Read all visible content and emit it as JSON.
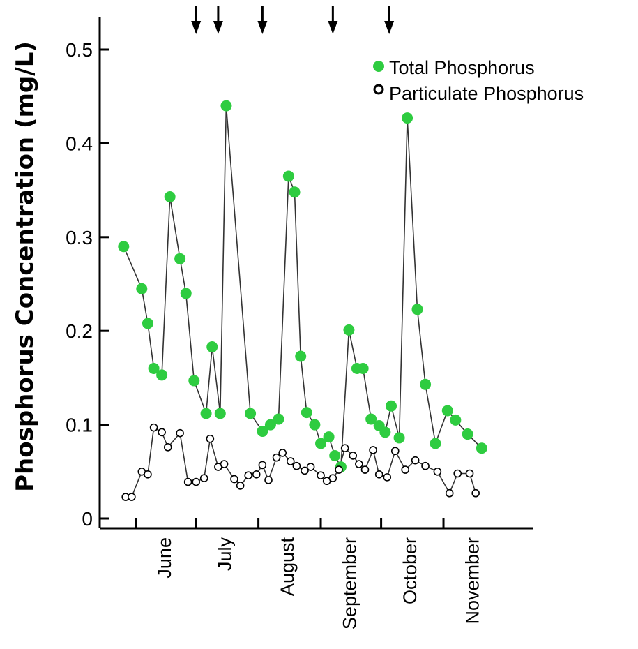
{
  "chart_data": {
    "type": "line",
    "title": "",
    "xlabel": "",
    "ylabel": "Phosphorus Concentration (mg/L)",
    "ylim": [
      0,
      0.5
    ],
    "yticks": [
      "0",
      "0.1",
      "0.2",
      "0.3",
      "0.4",
      "0.5"
    ],
    "x_unit": "day of year",
    "xlim": [
      140,
      340
    ],
    "month_labels": [
      {
        "label": "June",
        "x": 166
      },
      {
        "label": "July",
        "x": 196
      },
      {
        "label": "August",
        "x": 227
      },
      {
        "label": "September",
        "x": 258
      },
      {
        "label": "October",
        "x": 288
      },
      {
        "label": "November",
        "x": 319
      }
    ],
    "month_boundaries": [
      152,
      182,
      213,
      244,
      274,
      305
    ],
    "arrows_x": [
      182,
      193,
      215,
      250,
      278
    ],
    "legend": {
      "placement": "top-right"
    },
    "series": [
      {
        "name": "Total Phosphorus",
        "color": "#2ecc40",
        "marker": "filled-circle",
        "x": [
          146,
          155,
          158,
          161,
          165,
          169,
          174,
          177,
          181,
          187,
          190,
          194,
          197,
          209,
          215,
          219,
          223,
          228,
          231,
          234,
          237,
          241,
          244,
          248,
          251,
          254,
          258,
          262,
          265,
          269,
          273,
          276,
          279,
          283,
          287,
          292,
          296,
          301,
          307,
          311,
          317,
          324
        ],
        "y": [
          0.29,
          0.245,
          0.208,
          0.16,
          0.153,
          0.343,
          0.277,
          0.24,
          0.147,
          0.112,
          0.183,
          0.112,
          0.44,
          0.112,
          0.093,
          0.1,
          0.106,
          0.365,
          0.348,
          0.173,
          0.113,
          0.1,
          0.08,
          0.087,
          0.067,
          0.055,
          0.201,
          0.16,
          0.16,
          0.106,
          0.099,
          0.092,
          0.12,
          0.086,
          0.427,
          0.223,
          0.143,
          0.08,
          0.115,
          0.105,
          0.09,
          0.075
        ]
      },
      {
        "name": "Particulate Phosphorus",
        "color": "#ffffff",
        "marker": "open-circle",
        "x": [
          147,
          150,
          155,
          158,
          161,
          165,
          168,
          174,
          178,
          182,
          186,
          189,
          193,
          196,
          201,
          204,
          208,
          212,
          215,
          218,
          222,
          225,
          229,
          232,
          236,
          239,
          244,
          247,
          250,
          253,
          256,
          260,
          263,
          266,
          270,
          273,
          277,
          281,
          286,
          291,
          296,
          302,
          308,
          312,
          318,
          321
        ],
        "y": [
          0.023,
          0.023,
          0.05,
          0.047,
          0.097,
          0.092,
          0.076,
          0.091,
          0.039,
          0.039,
          0.043,
          0.085,
          0.055,
          0.058,
          0.042,
          0.035,
          0.046,
          0.047,
          0.057,
          0.041,
          0.065,
          0.07,
          0.061,
          0.056,
          0.051,
          0.055,
          0.046,
          0.04,
          0.043,
          0.052,
          0.075,
          0.067,
          0.058,
          0.052,
          0.073,
          0.047,
          0.044,
          0.072,
          0.052,
          0.062,
          0.056,
          0.05,
          0.027,
          0.048,
          0.048,
          0.027
        ]
      }
    ]
  }
}
